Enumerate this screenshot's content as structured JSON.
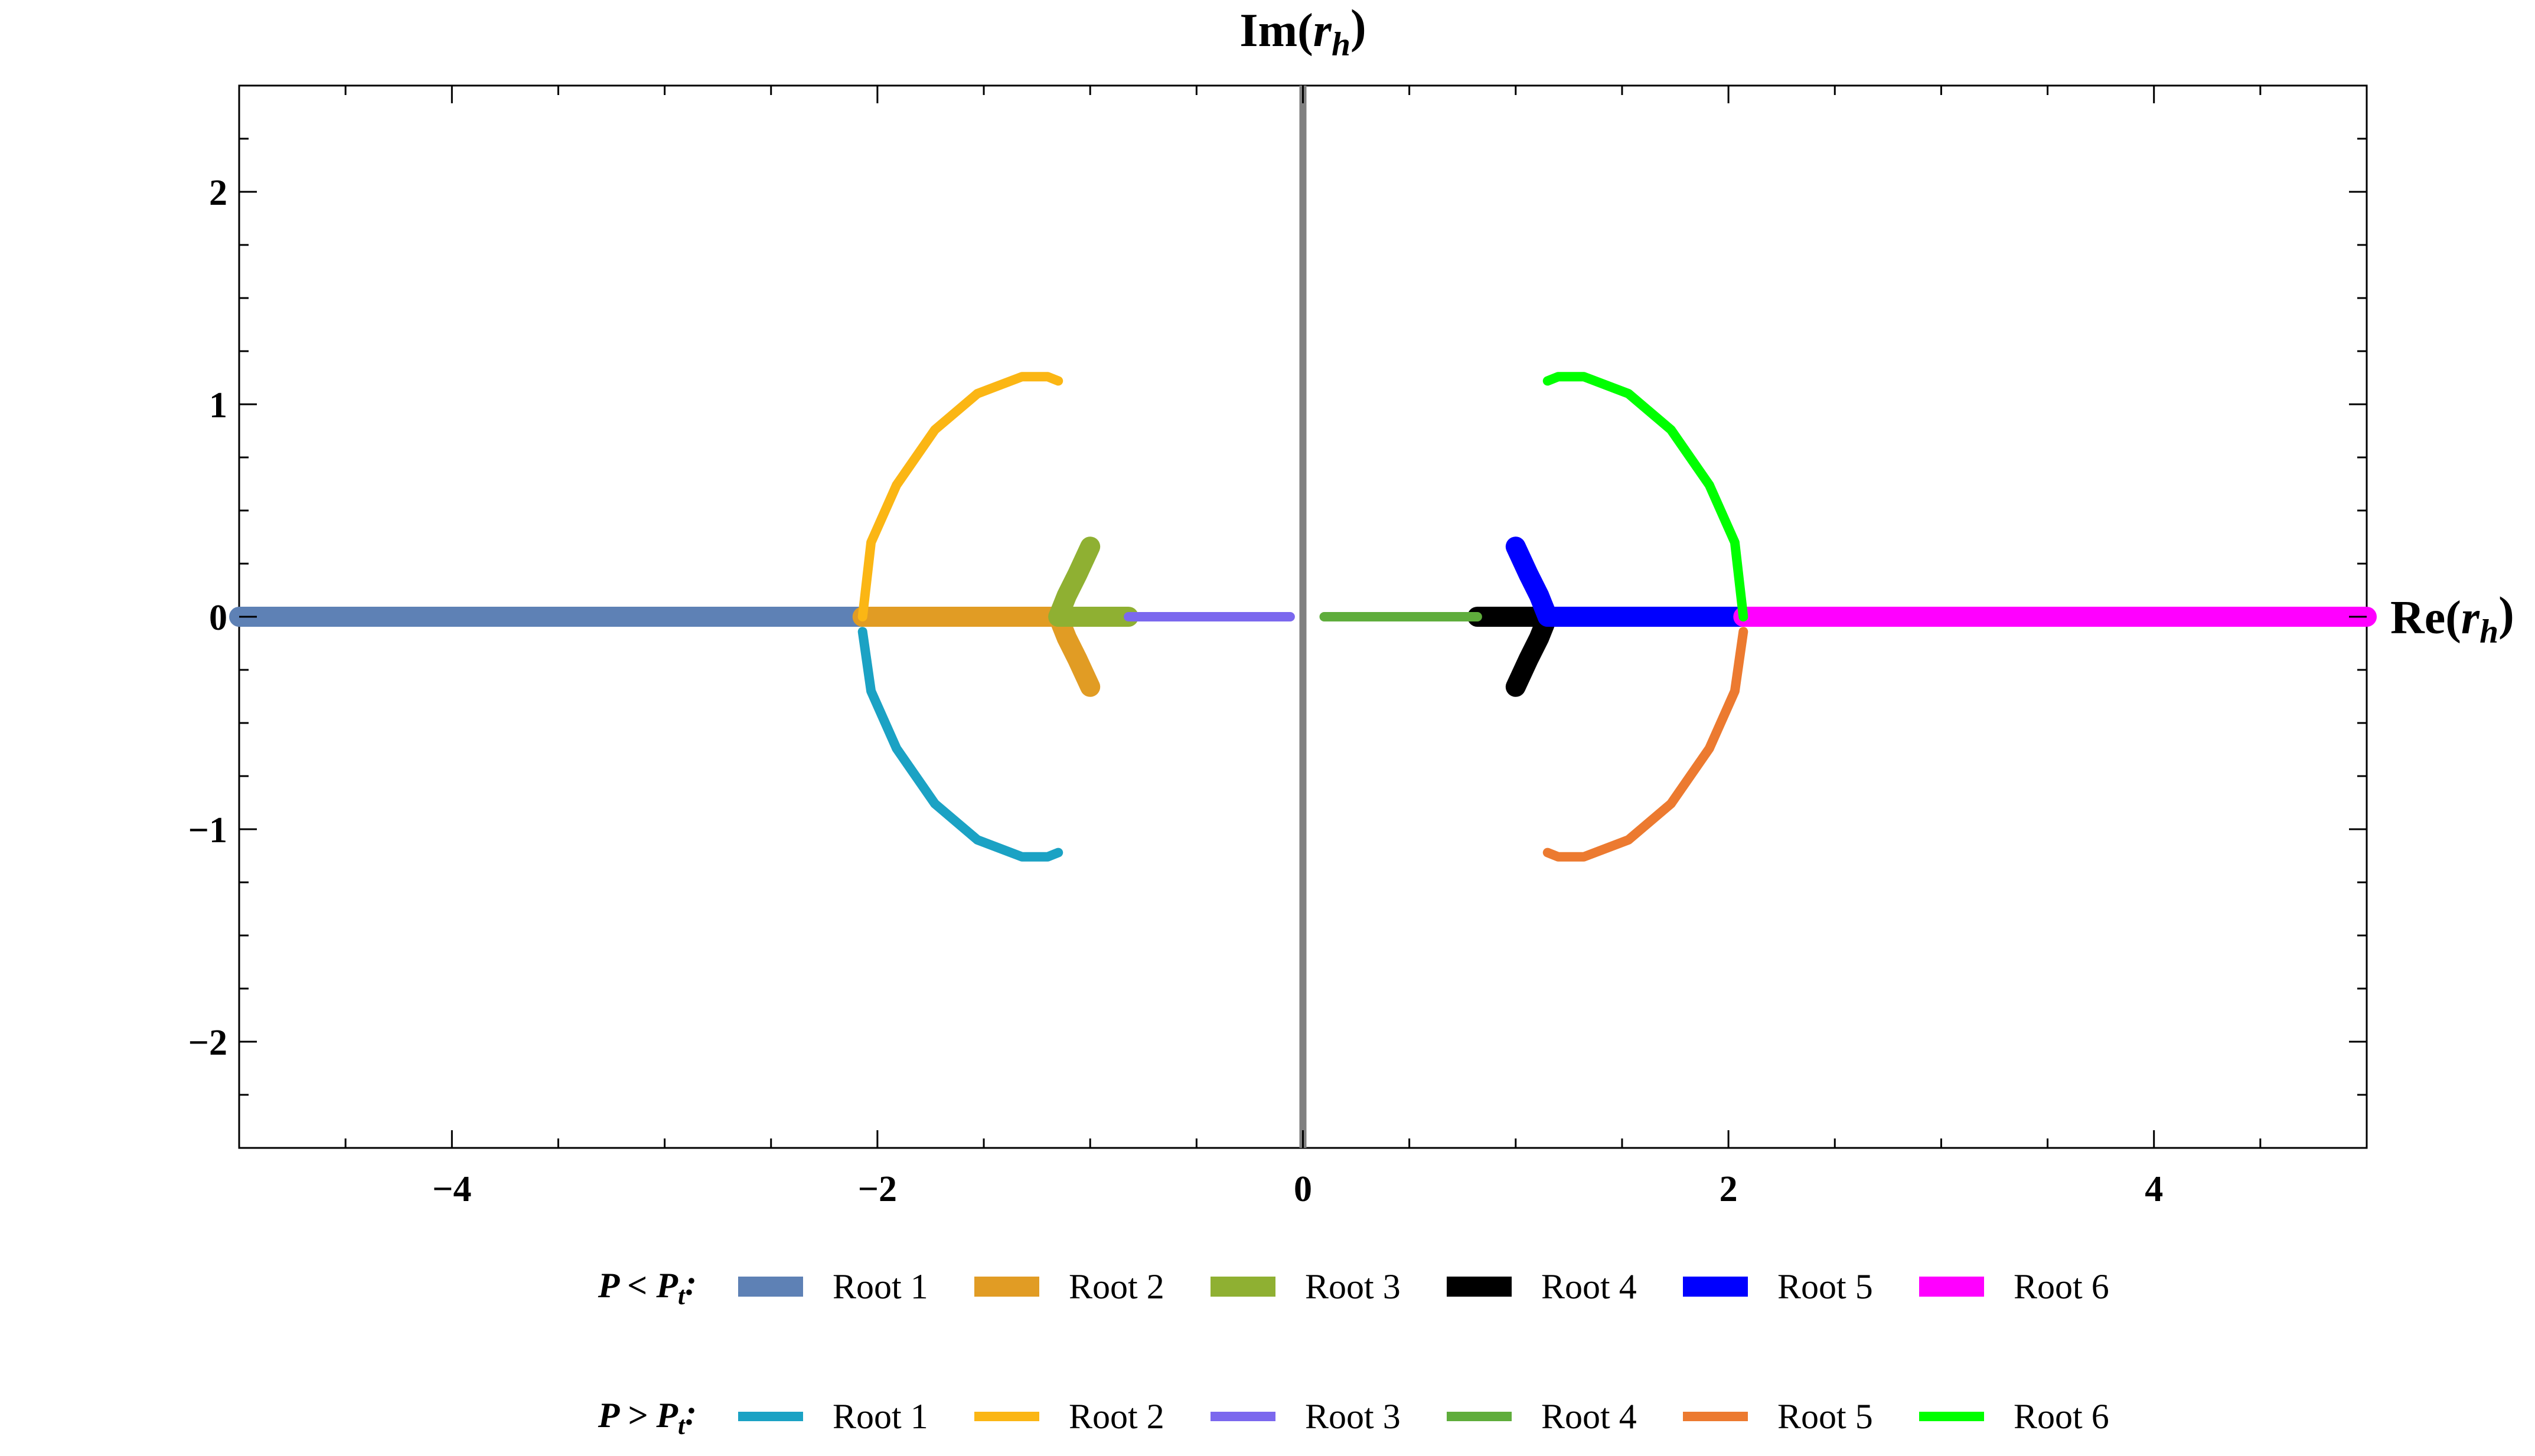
{
  "chart_data": {
    "type": "line",
    "title": "",
    "xlabel": "Re(r_h)",
    "ylabel": "Im(r_h)",
    "xlim": [
      -5,
      5
    ],
    "ylim": [
      -2.5,
      2.5
    ],
    "xticks": [
      -4,
      -2,
      0,
      2,
      4
    ],
    "xtick_labels": [
      "−4",
      "−2",
      "0",
      "2",
      "4"
    ],
    "yticks": [
      -2,
      -1,
      0,
      1,
      2
    ],
    "ytick_labels": [
      "−2",
      "−1",
      "0",
      "1",
      "2"
    ],
    "grid": false,
    "legend_placement": "bottom",
    "axis_color": "#808080",
    "groups": [
      {
        "label": "P < P_t:",
        "series": [
          {
            "name": "Root 1",
            "color": "#5E81B5",
            "points": [
              [
                -5.0,
                0.0
              ],
              [
                -2.07,
                0.0
              ]
            ]
          },
          {
            "name": "Root 2",
            "color": "#E19C24",
            "points": [
              [
                -2.07,
                0.0
              ],
              [
                -1.15,
                0.0
              ]
            ],
            "branches": [
              [
                [
                  -1.15,
                  0.0
                ],
                [
                  -1.11,
                  -0.1
                ],
                [
                  -1.06,
                  -0.2
                ],
                [
                  -1.0,
                  -0.33
                ]
              ]
            ]
          },
          {
            "name": "Root 3",
            "color": "#8FB032",
            "points": [
              [
                -1.15,
                0.0
              ],
              [
                -0.82,
                0.0
              ]
            ],
            "branches": [
              [
                [
                  -1.15,
                  0.0
                ],
                [
                  -1.11,
                  0.1
                ],
                [
                  -1.06,
                  0.2
                ],
                [
                  -1.0,
                  0.33
                ]
              ]
            ]
          },
          {
            "name": "Root 4",
            "color": "#000000",
            "points": [
              [
                0.82,
                0.0
              ],
              [
                1.15,
                0.0
              ]
            ],
            "branches": [
              [
                [
                  1.15,
                  0.0
                ],
                [
                  1.11,
                  -0.1
                ],
                [
                  1.06,
                  -0.2
                ],
                [
                  1.0,
                  -0.33
                ]
              ]
            ]
          },
          {
            "name": "Root 5",
            "color": "#0000FF",
            "points": [
              [
                1.15,
                0.0
              ],
              [
                2.07,
                0.0
              ]
            ],
            "branches": [
              [
                [
                  1.15,
                  0.0
                ],
                [
                  1.11,
                  0.1
                ],
                [
                  1.06,
                  0.2
                ],
                [
                  1.0,
                  0.33
                ]
              ]
            ]
          },
          {
            "name": "Root 6",
            "color": "#FF00FF",
            "points": [
              [
                2.07,
                0.0
              ],
              [
                5.0,
                0.0
              ]
            ]
          }
        ]
      },
      {
        "label": "P > P_t:",
        "series": [
          {
            "name": "Root 1",
            "color": "#1BA2C4",
            "points": [
              [
                -2.07,
                -0.07
              ],
              [
                -2.03,
                -0.35
              ],
              [
                -1.91,
                -0.62
              ],
              [
                -1.73,
                -0.88
              ],
              [
                -1.53,
                -1.05
              ],
              [
                -1.32,
                -1.13
              ],
              [
                -1.2,
                -1.13
              ],
              [
                -1.15,
                -1.11
              ]
            ]
          },
          {
            "name": "Root 2",
            "color": "#FBB614",
            "points": [
              [
                -2.07,
                0.0
              ],
              [
                -2.03,
                0.35
              ],
              [
                -1.91,
                0.62
              ],
              [
                -1.73,
                0.88
              ],
              [
                -1.53,
                1.05
              ],
              [
                -1.32,
                1.13
              ],
              [
                -1.2,
                1.13
              ],
              [
                -1.15,
                1.11
              ]
            ]
          },
          {
            "name": "Root 3",
            "color": "#7B68EE",
            "points": [
              [
                -0.82,
                0.0
              ],
              [
                -0.06,
                0.0
              ]
            ]
          },
          {
            "name": "Root 4",
            "color": "#5FAD3C",
            "points": [
              [
                0.1,
                0.0
              ],
              [
                0.82,
                0.0
              ]
            ]
          },
          {
            "name": "Root 5",
            "color": "#EC7A30",
            "points": [
              [
                2.07,
                -0.07
              ],
              [
                2.03,
                -0.35
              ],
              [
                1.91,
                -0.62
              ],
              [
                1.73,
                -0.88
              ],
              [
                1.53,
                -1.05
              ],
              [
                1.32,
                -1.13
              ],
              [
                1.2,
                -1.13
              ],
              [
                1.15,
                -1.11
              ]
            ]
          },
          {
            "name": "Root 6",
            "color": "#00FF00",
            "points": [
              [
                2.07,
                0.0
              ],
              [
                2.03,
                0.35
              ],
              [
                1.91,
                0.62
              ],
              [
                1.73,
                0.88
              ],
              [
                1.53,
                1.05
              ],
              [
                1.32,
                1.13
              ],
              [
                1.2,
                1.13
              ],
              [
                1.15,
                1.11
              ]
            ]
          }
        ]
      }
    ]
  }
}
